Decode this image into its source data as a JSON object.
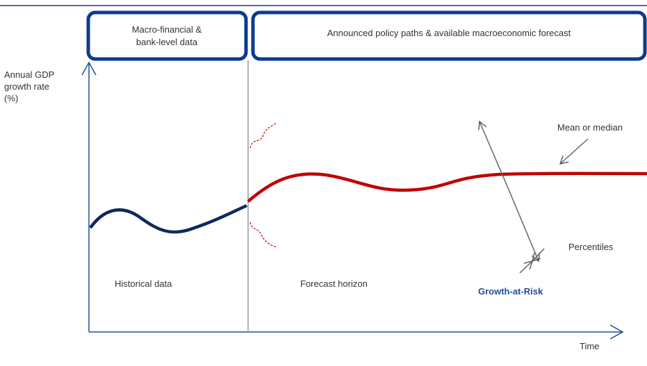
{
  "header": {
    "left_box": [
      "Macro-financial &",
      "bank-level data"
    ],
    "right_box": "Announced policy paths & available macroeconomic forecast"
  },
  "y_axis_label": [
    "Annual GDP",
    "growth rate",
    "(%)"
  ],
  "x_axis_label": "Time",
  "regions": {
    "historical": "Historical data",
    "forecast": "Forecast horizon"
  },
  "annotations": {
    "mean": "Mean or median",
    "percentiles": "Percentiles",
    "growth_at_risk": "Growth-at-Risk"
  }
}
